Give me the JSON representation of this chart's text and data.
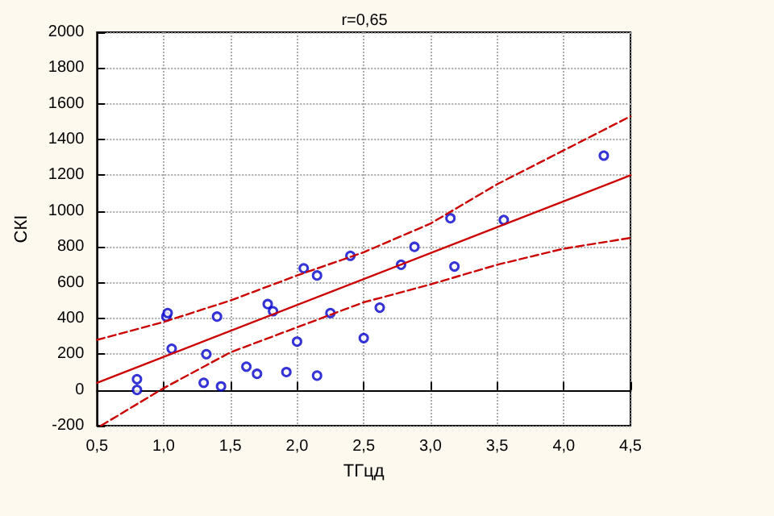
{
  "chart_data": {
    "type": "scatter",
    "title": "r=0,65",
    "xlabel": "ТГцд",
    "ylabel": "СКІ",
    "series": [
      {
        "color": "#0000cc",
        "marker": "circle",
        "x": [
          0.8,
          0.8,
          1.02,
          1.03,
          1.06,
          1.3,
          1.32,
          1.4,
          1.43,
          1.62,
          1.7,
          1.78,
          1.82,
          1.92,
          2.0,
          2.05,
          2.15,
          2.15,
          2.25,
          2.4,
          2.5,
          2.62,
          2.78,
          2.88,
          3.15,
          3.18,
          3.55,
          4.3
        ],
        "values": [
          60,
          0,
          410,
          430,
          230,
          40,
          200,
          410,
          20,
          130,
          90,
          480,
          440,
          100,
          270,
          680,
          80,
          640,
          430,
          750,
          290,
          460,
          700,
          800,
          960,
          690,
          950,
          1310
        ]
      },
      {
        "type": "line",
        "color": "#cc0000",
        "line_style": "solid",
        "marker": "none",
        "x": [
          0.5,
          4.5
        ],
        "values": [
          40,
          1200
        ]
      },
      {
        "type": "line",
        "color": "#cc0000",
        "line_style": "dashed",
        "marker": "none",
        "x": [
          0.5,
          1,
          1.5,
          2,
          2.5,
          3,
          3.5,
          4,
          4.5
        ],
        "values": [
          280,
          380,
          500,
          640,
          770,
          930,
          1150,
          1340,
          1530
        ]
      },
      {
        "type": "line",
        "color": "#cc0000",
        "line_style": "dashed",
        "marker": "none",
        "x": [
          0.53,
          1,
          1.5,
          2,
          2.5,
          3,
          3.5,
          4,
          4.5
        ],
        "values": [
          -200,
          10,
          210,
          350,
          490,
          590,
          700,
          790,
          850
        ]
      }
    ],
    "xlim": [
      0.5,
      4.5
    ],
    "xticks": [
      {
        "value": 0.5,
        "label": "0,5"
      },
      {
        "value": 1,
        "label": "1,0"
      },
      {
        "value": 1.5,
        "label": "1,5"
      },
      {
        "value": 2,
        "label": "2,0"
      },
      {
        "value": 2.5,
        "label": "2,5"
      },
      {
        "value": 3,
        "label": "3,0"
      },
      {
        "value": 3.5,
        "label": "3,5"
      },
      {
        "value": 4,
        "label": "4,0"
      },
      {
        "value": 4.5,
        "label": "4,5"
      }
    ],
    "ylim": [
      -200,
      2000
    ],
    "yticks": [
      -200,
      0,
      200,
      400,
      600,
      800,
      1000,
      1200,
      1400,
      1600,
      1800,
      2000
    ],
    "grid": true
  }
}
